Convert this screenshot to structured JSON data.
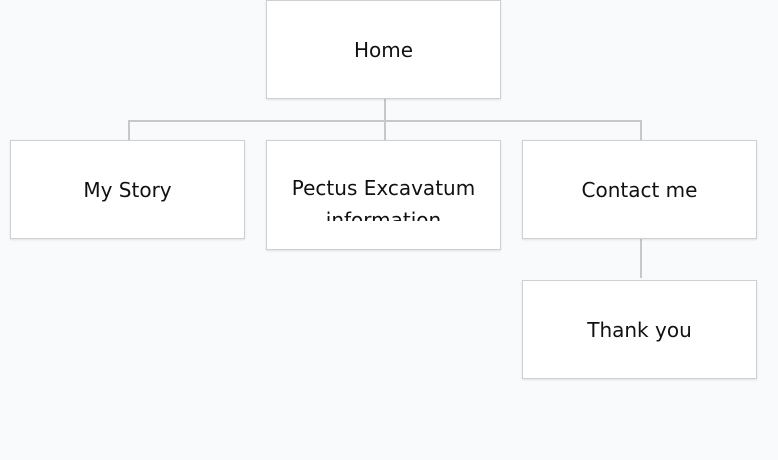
{
  "sitemap": {
    "nodes": {
      "home": "Home",
      "my_story": "My Story",
      "pectus": "Pectus Excavatum information",
      "contact": "Contact me",
      "thank_you": "Thank you"
    },
    "colors": {
      "background": "#f9fafb",
      "node_fill": "#ffffff",
      "node_border": "#cfd0d2",
      "connector": "#c7c8ca",
      "text": "#111111"
    }
  }
}
